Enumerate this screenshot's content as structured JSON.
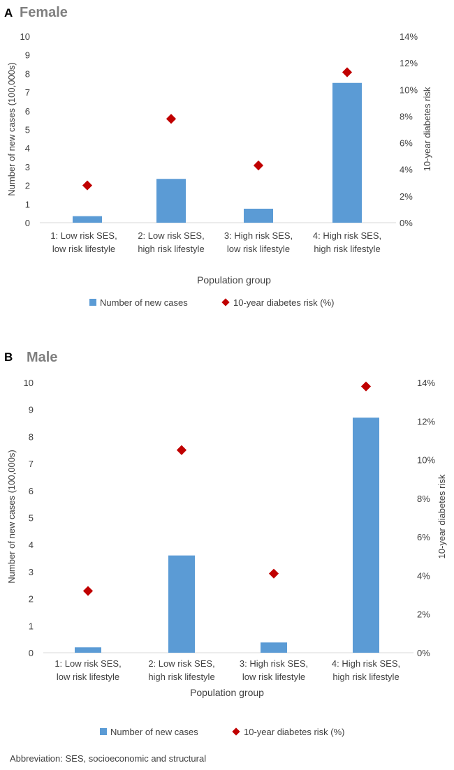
{
  "charts": [
    {
      "panel_letter": "A",
      "title": "Female",
      "xlabel": "Population group",
      "ylabel_left": "Number of new cases (100,000s)",
      "ylabel_right": "10-year diabetes risk",
      "left_ticks": [
        "0",
        "1",
        "2",
        "3",
        "4",
        "5",
        "6",
        "7",
        "8",
        "9",
        "10"
      ],
      "right_ticks": [
        "0%",
        "2%",
        "4%",
        "6%",
        "8%",
        "10%",
        "12%",
        "14%"
      ],
      "categories": [
        {
          "line1": "1: Low risk SES,",
          "line2": "low risk lifestyle"
        },
        {
          "line1": "2: Low risk SES,",
          "line2": "high risk lifestyle"
        },
        {
          "line1": "3: High risk SES,",
          "line2": "low risk lifestyle"
        },
        {
          "line1": "4: High risk SES,",
          "line2": "high risk lifestyle"
        }
      ],
      "legend": {
        "bar_label": "Number of new cases",
        "marker_label": "10-year diabetes risk (%)"
      }
    },
    {
      "panel_letter": "B",
      "title": "Male",
      "xlabel": "Population group",
      "ylabel_left": "Number of new cases (100,000s)",
      "ylabel_right": "10-year diabetes risk",
      "left_ticks": [
        "0",
        "1",
        "2",
        "3",
        "4",
        "5",
        "6",
        "7",
        "8",
        "9",
        "10"
      ],
      "right_ticks": [
        "0%",
        "2%",
        "4%",
        "6%",
        "8%",
        "10%",
        "12%",
        "14%"
      ],
      "categories": [
        {
          "line1": "1: Low risk SES,",
          "line2": "low risk lifestyle"
        },
        {
          "line1": "2: Low risk SES,",
          "line2": "high risk lifestyle"
        },
        {
          "line1": "3: High risk SES,",
          "line2": "low risk lifestyle"
        },
        {
          "line1": "4: High risk SES,",
          "line2": "high risk lifestyle"
        }
      ],
      "legend": {
        "bar_label": "Number of new cases",
        "marker_label": "10-year diabetes risk (%)"
      }
    }
  ],
  "footnote": "Abbreviation: SES, socioeconomic and structural",
  "colors": {
    "bar": "#5b9bd5",
    "marker": "#c00000",
    "text": "#404040",
    "title": "#7f7f7f",
    "axis": "#d9d9d9"
  },
  "chart_data": [
    {
      "type": "bar",
      "title": "Female",
      "categories": [
        "1: Low risk SES, low risk lifestyle",
        "2: Low risk SES, high risk lifestyle",
        "3: High risk SES, low risk lifestyle",
        "4: High risk SES, high risk lifestyle"
      ],
      "series": [
        {
          "name": "Number of new cases",
          "axis": "left",
          "kind": "bar",
          "values": [
            0.35,
            2.35,
            0.75,
            7.5
          ]
        },
        {
          "name": "10-year diabetes risk (%)",
          "axis": "right",
          "kind": "marker",
          "values": [
            2.8,
            7.8,
            4.3,
            11.3
          ]
        }
      ],
      "xlabel": "Population group",
      "ylabel": "Number of new cases (100,000s)",
      "y2label": "10-year diabetes risk",
      "ylim": [
        0,
        10
      ],
      "y2lim": [
        0,
        14
      ],
      "grid": false,
      "legend_position": "bottom"
    },
    {
      "type": "bar",
      "title": "Male",
      "categories": [
        "1: Low risk SES, low risk lifestyle",
        "2: Low risk SES, high risk lifestyle",
        "3: High risk SES, low risk lifestyle",
        "4: High risk SES, high risk lifestyle"
      ],
      "series": [
        {
          "name": "Number of new cases",
          "axis": "left",
          "kind": "bar",
          "values": [
            0.2,
            3.6,
            0.38,
            8.7
          ]
        },
        {
          "name": "10-year diabetes risk (%)",
          "axis": "right",
          "kind": "marker",
          "values": [
            3.2,
            10.5,
            4.1,
            13.8
          ]
        }
      ],
      "xlabel": "Population group",
      "ylabel": "Number of new cases (100,000s)",
      "y2label": "10-year diabetes risk",
      "ylim": [
        0,
        10
      ],
      "y2lim": [
        0,
        14
      ],
      "grid": false,
      "legend_position": "bottom"
    }
  ]
}
